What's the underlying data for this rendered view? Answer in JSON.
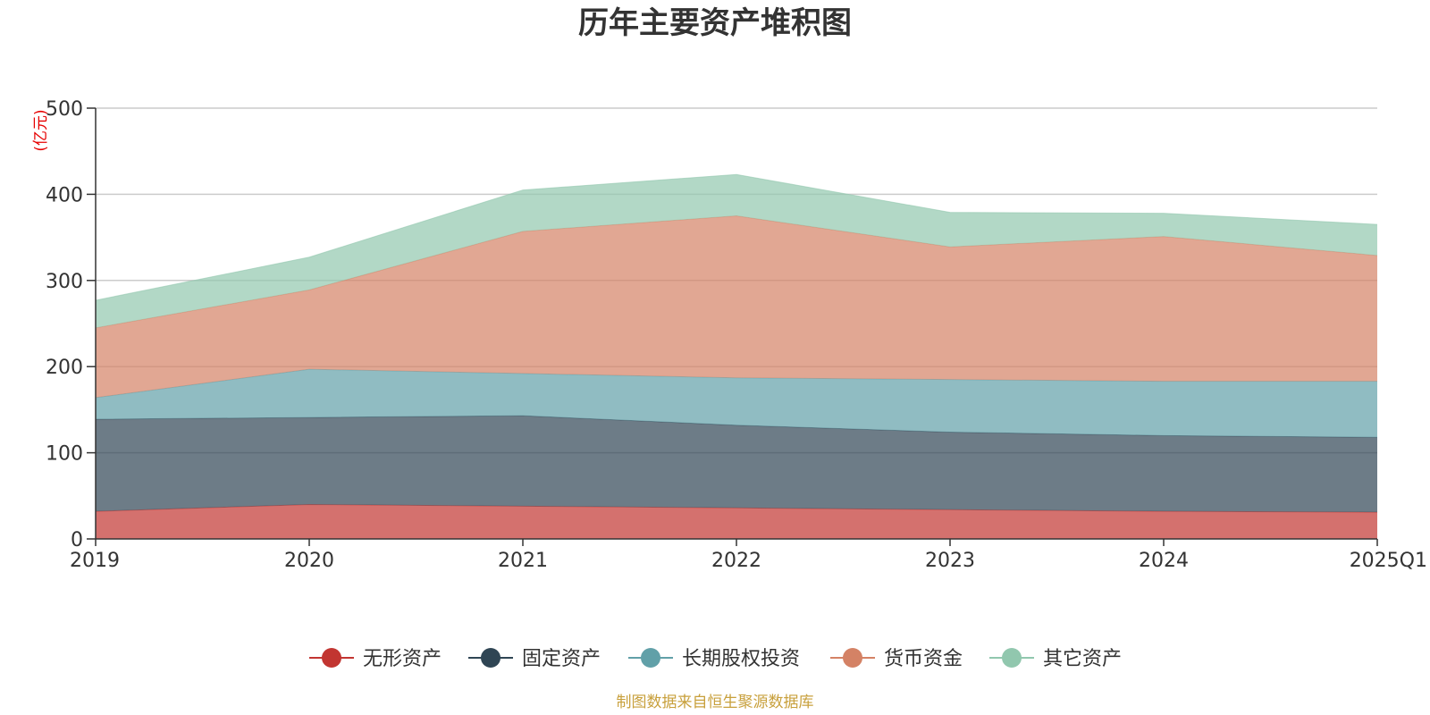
{
  "chart_data": {
    "type": "area",
    "stacked": true,
    "title": "历年主要资产堆积图",
    "unit_label": "(亿元)",
    "categories": [
      "2019",
      "2020",
      "2021",
      "2022",
      "2023",
      "2024",
      "2025Q1"
    ],
    "ylim": [
      0,
      500
    ],
    "yticks": [
      0,
      100,
      200,
      300,
      400,
      500
    ],
    "grid": true,
    "legend_position": "bottom",
    "series": [
      {
        "name": "无形资产",
        "color": "#c23531",
        "values": [
          32,
          40,
          38,
          36,
          34,
          32,
          31
        ]
      },
      {
        "name": "固定资产",
        "color": "#2f4554",
        "values": [
          107,
          101,
          105,
          96,
          90,
          88,
          87
        ]
      },
      {
        "name": "长期股权投资",
        "color": "#61a0a8",
        "values": [
          25,
          56,
          49,
          55,
          61,
          63,
          65
        ]
      },
      {
        "name": "货币资金",
        "color": "#d48265",
        "values": [
          81,
          92,
          165,
          188,
          154,
          168,
          146
        ]
      },
      {
        "name": "其它资产",
        "color": "#91c7ae",
        "values": [
          32,
          38,
          48,
          48,
          40,
          27,
          36
        ]
      }
    ]
  },
  "footer": {
    "source": "制图数据来自恒生聚源数据库"
  }
}
